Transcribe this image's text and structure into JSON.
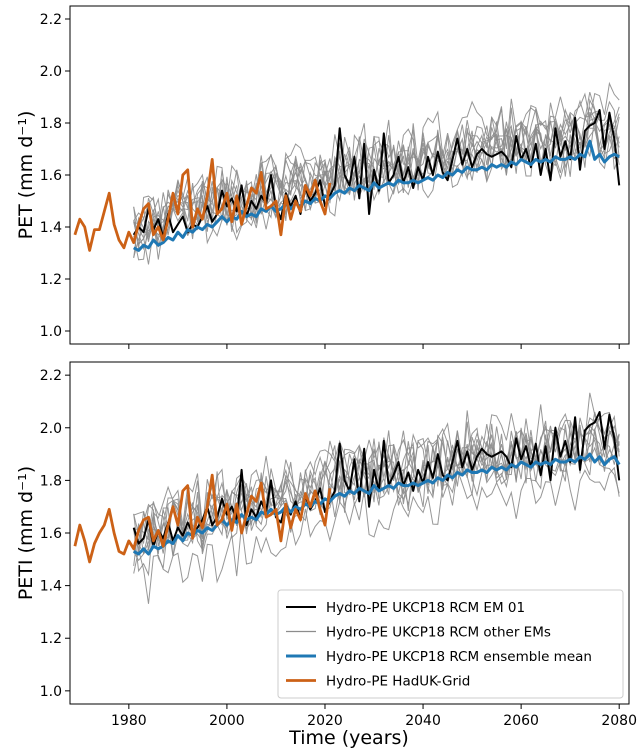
{
  "x_axis_label": "Time (years)",
  "chart_data": [
    {
      "type": "line",
      "ylabel": "PET (mm d⁻¹)",
      "xlim": [
        1968,
        2082
      ],
      "ylim": [
        0.95,
        2.25
      ],
      "xticks": [
        1980,
        2000,
        2020,
        2040,
        2060,
        2080
      ],
      "yticks": [
        1.0,
        1.2,
        1.4,
        1.6,
        1.8,
        2.0,
        2.2
      ],
      "ytick_labels": [
        "1.0",
        "1.2",
        "1.4",
        "1.6",
        "1.8",
        "2.0",
        "2.2"
      ],
      "show_x_tick_labels": false,
      "series": [
        {
          "key": "haduk",
          "color": "#cc6116",
          "x_start": 1969,
          "values": [
            1.37,
            1.43,
            1.4,
            1.31,
            1.39,
            1.39,
            1.46,
            1.53,
            1.41,
            1.35,
            1.32,
            1.38,
            1.34,
            1.41,
            1.47,
            1.49,
            1.37,
            1.4,
            1.35,
            1.43,
            1.53,
            1.45,
            1.6,
            1.62,
            1.4,
            1.47,
            1.43,
            1.52,
            1.66,
            1.45,
            1.47,
            1.53,
            1.42,
            1.52,
            1.41,
            1.48,
            1.55,
            1.53,
            1.61,
            1.47,
            1.48,
            1.5,
            1.37,
            1.52,
            1.43,
            1.5,
            1.46,
            1.56,
            1.52,
            1.58,
            1.5,
            1.45,
            1.57
          ]
        },
        {
          "key": "em01",
          "color": "#000000",
          "x_start": 1981,
          "values": [
            1.37,
            1.4,
            1.38,
            1.47,
            1.39,
            1.43,
            1.36,
            1.45,
            1.38,
            1.41,
            1.44,
            1.38,
            1.41,
            1.4,
            1.44,
            1.48,
            1.42,
            1.45,
            1.54,
            1.48,
            1.51,
            1.46,
            1.56,
            1.44,
            1.5,
            1.47,
            1.52,
            1.49,
            1.6,
            1.48,
            1.43,
            1.53,
            1.48,
            1.52,
            1.45,
            1.55,
            1.5,
            1.53,
            1.58,
            1.48,
            1.52,
            1.56,
            1.78,
            1.6,
            1.56,
            1.67,
            1.51,
            1.72,
            1.45,
            1.62,
            1.54,
            1.76,
            1.57,
            1.6,
            1.67,
            1.57,
            1.63,
            1.55,
            1.63,
            1.58,
            1.67,
            1.6,
            1.69,
            1.61,
            1.58,
            1.66,
            1.74,
            1.64,
            1.7,
            1.63,
            1.68,
            1.7,
            1.68,
            1.67,
            1.68,
            1.69,
            1.67,
            1.63,
            1.75,
            1.66,
            1.7,
            1.63,
            1.72,
            1.6,
            1.7,
            1.58,
            1.78,
            1.67,
            1.73,
            1.66,
            1.82,
            1.62,
            1.77,
            1.79,
            1.8,
            1.85,
            1.7,
            1.84,
            1.74,
            1.56
          ]
        },
        {
          "key": "mean",
          "color": "#1f78b4",
          "x_start": 1981,
          "values": [
            1.32,
            1.31,
            1.33,
            1.32,
            1.35,
            1.33,
            1.34,
            1.36,
            1.35,
            1.38,
            1.36,
            1.39,
            1.38,
            1.4,
            1.39,
            1.41,
            1.4,
            1.42,
            1.44,
            1.42,
            1.44,
            1.43,
            1.46,
            1.44,
            1.45,
            1.44,
            1.47,
            1.46,
            1.48,
            1.46,
            1.47,
            1.49,
            1.47,
            1.49,
            1.48,
            1.5,
            1.49,
            1.51,
            1.5,
            1.52,
            1.51,
            1.53,
            1.54,
            1.53,
            1.55,
            1.54,
            1.56,
            1.55,
            1.54,
            1.57,
            1.55,
            1.56,
            1.57,
            1.56,
            1.58,
            1.57,
            1.57,
            1.58,
            1.57,
            1.58,
            1.59,
            1.58,
            1.6,
            1.59,
            1.61,
            1.6,
            1.62,
            1.61,
            1.63,
            1.62,
            1.62,
            1.63,
            1.62,
            1.64,
            1.63,
            1.64,
            1.63,
            1.65,
            1.64,
            1.66,
            1.65,
            1.64,
            1.66,
            1.65,
            1.66,
            1.65,
            1.67,
            1.66,
            1.66,
            1.67,
            1.66,
            1.68,
            1.67,
            1.73,
            1.66,
            1.68,
            1.65,
            1.67,
            1.68,
            1.67
          ]
        }
      ]
    },
    {
      "type": "line",
      "ylabel": "PETI (mm d⁻¹)",
      "xlim": [
        1968,
        2082
      ],
      "ylim": [
        0.95,
        2.25
      ],
      "xticks": [
        1980,
        2000,
        2020,
        2040,
        2060,
        2080
      ],
      "xtick_labels": [
        "1980",
        "2000",
        "2020",
        "2040",
        "2060",
        "2080"
      ],
      "yticks": [
        1.0,
        1.2,
        1.4,
        1.6,
        1.8,
        2.0,
        2.2
      ],
      "ytick_labels": [
        "1.0",
        "1.2",
        "1.4",
        "1.6",
        "1.8",
        "2.0",
        "2.2"
      ],
      "show_x_tick_labels": true,
      "legend": "lower-right",
      "series": [
        {
          "key": "em01",
          "name": "Hydro-PE UKCP18 RCM EM 01",
          "color": "#000000",
          "x_start": 1981,
          "values": [
            1.62,
            1.56,
            1.58,
            1.65,
            1.55,
            1.61,
            1.58,
            1.64,
            1.57,
            1.62,
            1.59,
            1.64,
            1.6,
            1.62,
            1.65,
            1.7,
            1.63,
            1.66,
            1.73,
            1.67,
            1.7,
            1.65,
            1.84,
            1.63,
            1.69,
            1.66,
            1.72,
            1.68,
            1.8,
            1.66,
            1.64,
            1.71,
            1.67,
            1.72,
            1.65,
            1.74,
            1.69,
            1.72,
            1.77,
            1.68,
            1.72,
            1.76,
            1.94,
            1.8,
            1.76,
            1.88,
            1.72,
            1.92,
            1.7,
            1.84,
            1.76,
            1.95,
            1.78,
            1.82,
            1.87,
            1.78,
            1.83,
            1.76,
            1.84,
            1.79,
            1.87,
            1.81,
            1.9,
            1.82,
            1.8,
            1.87,
            1.95,
            1.85,
            1.91,
            1.84,
            1.89,
            1.92,
            1.9,
            1.89,
            1.9,
            1.91,
            1.89,
            1.85,
            1.96,
            1.88,
            1.93,
            1.85,
            1.94,
            1.82,
            1.93,
            1.8,
            2.0,
            1.89,
            1.95,
            1.87,
            2.04,
            1.84,
            1.99,
            2.01,
            2.02,
            2.06,
            1.92,
            2.05,
            1.96,
            1.8
          ]
        },
        {
          "key": "others",
          "name": "Hydro-PE UKCP18 RCM other EMs",
          "color": "#8c8c8c",
          "x_start": 1981,
          "values": []
        },
        {
          "key": "mean",
          "name": "Hydro-PE UKCP18 RCM ensemble mean",
          "color": "#1f78b4",
          "x_start": 1981,
          "values": [
            1.53,
            1.52,
            1.54,
            1.52,
            1.55,
            1.54,
            1.55,
            1.57,
            1.56,
            1.59,
            1.57,
            1.6,
            1.59,
            1.61,
            1.6,
            1.62,
            1.61,
            1.63,
            1.65,
            1.63,
            1.65,
            1.64,
            1.67,
            1.65,
            1.66,
            1.65,
            1.68,
            1.67,
            1.69,
            1.67,
            1.68,
            1.7,
            1.68,
            1.7,
            1.69,
            1.71,
            1.7,
            1.72,
            1.71,
            1.73,
            1.72,
            1.74,
            1.75,
            1.74,
            1.76,
            1.75,
            1.77,
            1.76,
            1.75,
            1.78,
            1.76,
            1.77,
            1.78,
            1.77,
            1.79,
            1.78,
            1.78,
            1.79,
            1.78,
            1.79,
            1.8,
            1.79,
            1.81,
            1.8,
            1.82,
            1.81,
            1.83,
            1.82,
            1.84,
            1.83,
            1.83,
            1.84,
            1.83,
            1.85,
            1.84,
            1.85,
            1.84,
            1.86,
            1.85,
            1.87,
            1.86,
            1.85,
            1.87,
            1.86,
            1.87,
            1.86,
            1.88,
            1.87,
            1.87,
            1.88,
            1.87,
            1.89,
            1.88,
            1.9,
            1.87,
            1.89,
            1.86,
            1.88,
            1.89,
            1.86
          ]
        },
        {
          "key": "haduk",
          "name": "Hydro-PE HadUK-Grid",
          "color": "#cc6116",
          "x_start": 1969,
          "values": [
            1.55,
            1.63,
            1.57,
            1.49,
            1.56,
            1.6,
            1.63,
            1.69,
            1.6,
            1.53,
            1.52,
            1.57,
            1.54,
            1.61,
            1.65,
            1.66,
            1.57,
            1.61,
            1.55,
            1.63,
            1.7,
            1.63,
            1.76,
            1.78,
            1.58,
            1.66,
            1.62,
            1.7,
            1.82,
            1.63,
            1.65,
            1.71,
            1.61,
            1.71,
            1.6,
            1.67,
            1.74,
            1.72,
            1.79,
            1.66,
            1.67,
            1.69,
            1.57,
            1.71,
            1.62,
            1.69,
            1.65,
            1.75,
            1.7,
            1.76,
            1.69,
            1.63,
            1.77
          ]
        }
      ]
    }
  ]
}
